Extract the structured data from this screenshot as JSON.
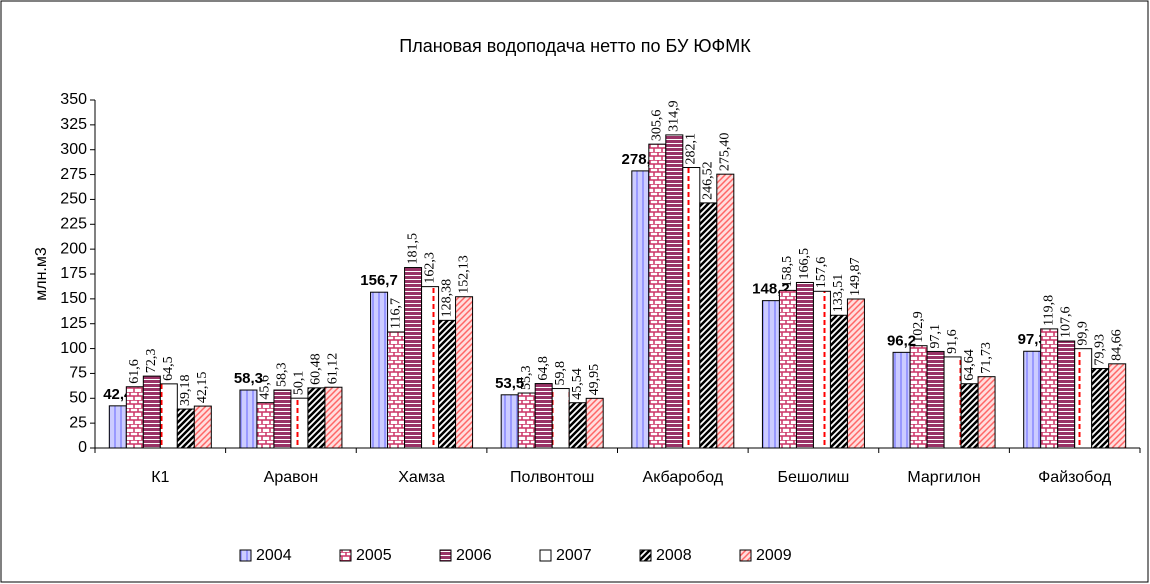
{
  "chart_data": {
    "type": "bar",
    "title": "Плановая водоподача нетто по БУ ЮФМК",
    "ylabel": "млн.м3",
    "categories": [
      "К1",
      "Аравон",
      "Хамза",
      "Полвонтош",
      "Акбаробод",
      "Бешолиш",
      "Маргилон",
      "Файзобод"
    ],
    "series": [
      {
        "name": "2004",
        "color": "#9999ff",
        "values": [
          42.4,
          58.3,
          156.7,
          53.5,
          278.7,
          148.2,
          96.2,
          97.3
        ],
        "value_labels": [
          "42,4",
          "58,3",
          "156,7",
          "53,5",
          "278,7",
          "148,2",
          "96,2",
          "97,3"
        ]
      },
      {
        "name": "2005",
        "color": "#cc3366",
        "values": [
          61.6,
          45.6,
          116.7,
          55.3,
          305.6,
          158.5,
          102.9,
          119.8
        ],
        "value_labels": [
          "61,6",
          "45,6",
          "116,7",
          "55,3",
          "305,6",
          "158,5",
          "102,9",
          "119,8"
        ]
      },
      {
        "name": "2006",
        "color": "#993366",
        "values": [
          72.3,
          58.3,
          181.5,
          64.8,
          314.9,
          166.5,
          97.1,
          107.6
        ],
        "value_labels": [
          "72,3",
          "58,3",
          "181,5",
          "64,8",
          "314,9",
          "166,5",
          "97,1",
          "107,6"
        ]
      },
      {
        "name": "2007",
        "color": "#ff0000",
        "values": [
          64.5,
          50.1,
          162.3,
          59.8,
          282.1,
          157.6,
          91.6,
          99.9
        ],
        "value_labels": [
          "64,5",
          "50,1",
          "162,3",
          "59,8",
          "282,1",
          "157,6",
          "91,6",
          "99,9"
        ]
      },
      {
        "name": "2008",
        "color": "#000000",
        "values": [
          39.18,
          60.48,
          128.38,
          45.54,
          246.52,
          133.51,
          64.64,
          79.93
        ],
        "value_labels": [
          "39,18",
          "60,48",
          "128,38",
          "45,54",
          "246,52",
          "133,51",
          "64,64",
          "79,93"
        ]
      },
      {
        "name": "2009",
        "color": "#ff6666",
        "values": [
          42.15,
          61.12,
          152.13,
          49.95,
          275.4,
          149.87,
          71.73,
          84.66
        ],
        "value_labels": [
          "42,15",
          "61,12",
          "152,13",
          "49,95",
          "275,40",
          "149,87",
          "71,73",
          "84,66"
        ]
      }
    ],
    "ylim": [
      0,
      350
    ],
    "yticks": [
      0,
      25,
      50,
      75,
      100,
      125,
      150,
      175,
      200,
      225,
      250,
      275,
      300,
      325,
      350
    ],
    "grid": false,
    "legend": "bottom"
  }
}
